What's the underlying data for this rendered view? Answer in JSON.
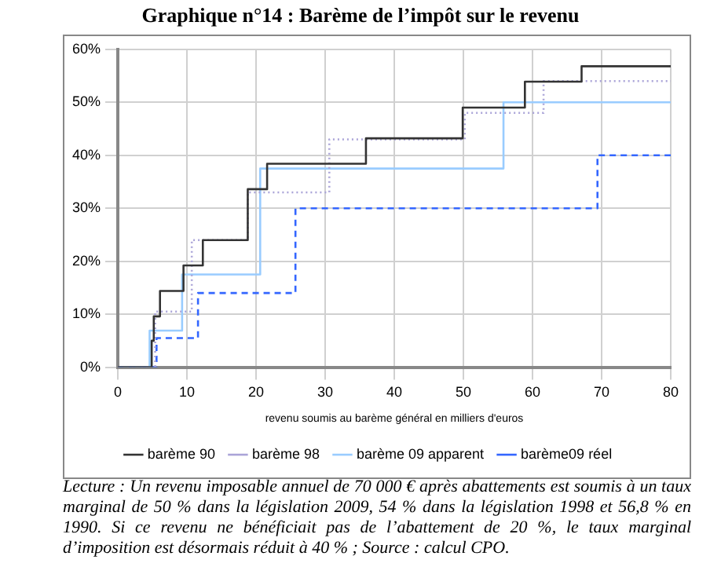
{
  "chart_data": {
    "type": "step",
    "title": "Graphique n°14 : Barème de l’impôt sur le revenu",
    "xlabel": "revenu soumis au barème général en milliers d'euros",
    "xlim": [
      0,
      80
    ],
    "xticks": [
      0,
      10,
      20,
      30,
      40,
      50,
      60,
      70,
      80
    ],
    "ylim": [
      0,
      60
    ],
    "yticks": [
      {
        "value": 0,
        "label": "0%"
      },
      {
        "value": 10,
        "label": "10%"
      },
      {
        "value": 20,
        "label": "20%"
      },
      {
        "value": 30,
        "label": "30%"
      },
      {
        "value": 40,
        "label": "40%"
      },
      {
        "value": 50,
        "label": "50%"
      },
      {
        "value": 60,
        "label": "60%"
      }
    ],
    "grid": true,
    "legend": "bottom",
    "marker": "none",
    "series": [
      {
        "name": "barème 90",
        "color": "#333333",
        "line_style": "solid",
        "x": [
          0,
          4.9,
          5.2,
          6.1,
          9.5,
          12.3,
          18.8,
          21.6,
          35.9,
          49.9,
          58.9,
          67.1,
          80
        ],
        "values": [
          0,
          5,
          9.6,
          14.4,
          19.2,
          24,
          33.6,
          38.4,
          43.2,
          49,
          53.9,
          56.8,
          56.8
        ]
      },
      {
        "name": "barème 98",
        "color": "#aaa4d8",
        "line_style": "dotted",
        "x": [
          0,
          5.4,
          10.7,
          18.8,
          30.6,
          50.2,
          61.6,
          80
        ],
        "values": [
          0,
          10.5,
          24,
          33,
          43,
          48,
          54,
          54
        ]
      },
      {
        "name": "barème 09 apparent",
        "color": "#99ccff",
        "line_style": "solid",
        "x": [
          0,
          4.6,
          9.3,
          20.6,
          55.8,
          80
        ],
        "values": [
          0,
          6.9,
          17.5,
          37.5,
          50,
          50
        ]
      },
      {
        "name": "barème09 réel",
        "color": "#3366ff",
        "line_style": "dashed",
        "x": [
          0,
          5.6,
          11.6,
          25.7,
          69.4,
          80
        ],
        "values": [
          0,
          5.5,
          14,
          30,
          40,
          40
        ]
      }
    ],
    "annotations": [
      "Lecture : Un revenu imposable annuel de 70 000 € après abattements est soumis à un taux marginal de 50 % dans la législation 2009, 54 % dans la législation 1998 et 56,8 % en 1990. Si ce revenu ne bénéficiait pas de l’abattement de 20 %, le taux marginal d’imposition est désormais réduit à 40 % ; Source : calcul CPO."
    ]
  }
}
